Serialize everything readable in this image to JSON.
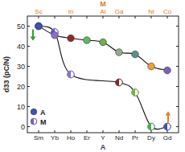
{
  "chart_data": {
    "type": "line",
    "y_label": "d33 (pC/N)",
    "x_label": "A",
    "x2_label": "M",
    "categories": [
      "Sm",
      "Yb",
      "Ho",
      "Er",
      "Y",
      "Nd",
      "Pr",
      "Dy",
      "Gd"
    ],
    "x2_categories": [
      "Sc",
      null,
      "In",
      null,
      "Al",
      "Ga",
      null,
      "Ni",
      "Co"
    ],
    "ylim": [
      -3,
      55
    ],
    "yticks": [
      0,
      10,
      20,
      30,
      40,
      50
    ],
    "grid": false,
    "legend": "lower left",
    "series": [
      {
        "name": "A",
        "marker": "circle",
        "color": "#3f51b5",
        "colors": [
          "#3f51b5",
          "#8a6fd1",
          "#8b2b2b",
          "#5cb85c",
          "#6ab04c",
          "#8fae8f",
          "#5f8f8f",
          "#f0a030",
          "#7b5fc0"
        ],
        "values": [
          50,
          45.5,
          44,
          43,
          42,
          37,
          36,
          30,
          28
        ]
      },
      {
        "name": "M",
        "marker": "half-circle",
        "color": "#7b5fc0",
        "colors": [
          "#3f51b5",
          "#6a5acd",
          "#8a6fd1",
          "#5cb85c",
          "#6ab04c",
          "#7a2a2a",
          "#7cb342",
          "#4caf50",
          "#3f51b5"
        ],
        "values": [
          50,
          47,
          26,
          null,
          null,
          22,
          17,
          0,
          0
        ]
      }
    ]
  }
}
